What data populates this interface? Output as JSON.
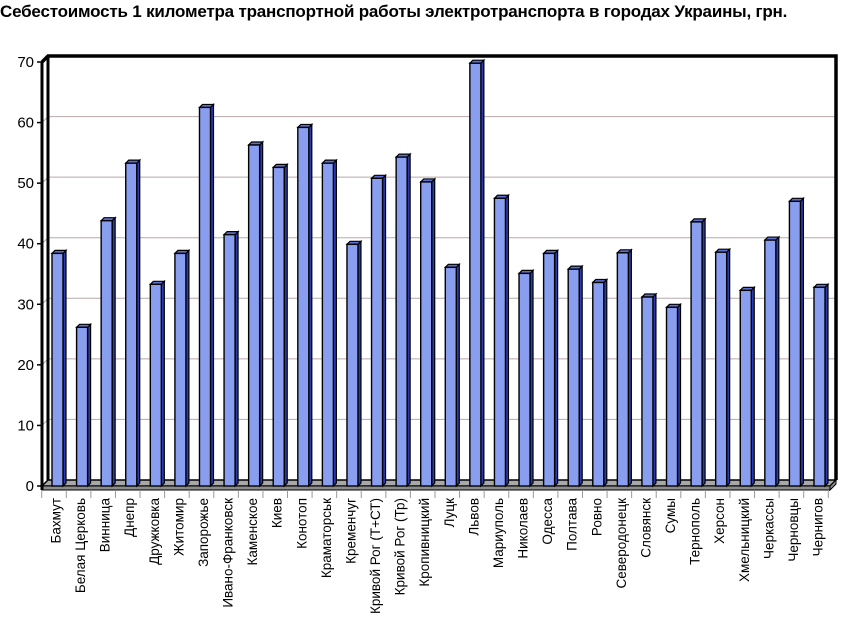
{
  "chart_data": {
    "type": "bar",
    "title": "Себестоимость 1 километра транспортной работы электротранспорта в городах Украины, грн.",
    "xlabel": "",
    "ylabel": "",
    "ylim": [
      0,
      70
    ],
    "yticks": [
      0,
      10,
      20,
      30,
      40,
      50,
      60,
      70
    ],
    "grid": true,
    "legend": null,
    "style": "3d-column",
    "bar_color": "#8a9ef0",
    "bar_side_color": "#2c3bb0",
    "categories": [
      "Бахмут",
      "Белая Церковь",
      "Винница",
      "Днепр",
      "Дружковка",
      "Житомир",
      "Запорожье",
      "Ивано-Франковск",
      "Каменское",
      "Киев",
      "Конотоп",
      "Краматорськ",
      "Кременчуг",
      "Кривой Рог (Т+СТ)",
      "Кривой Рог (Тр)",
      "Кропивницкий",
      "Луцк",
      "Львов",
      "Мариуполь",
      "Николаев",
      "Одесса",
      "Полтава",
      "Ровно",
      "Северодонецк",
      "Словянск",
      "Сумы",
      "Тернополь",
      "Херсон",
      "Хмельницкий",
      "Черкассы",
      "Черновцы",
      "Чернигов"
    ],
    "values": [
      38.4,
      26.2,
      43.8,
      53.3,
      33.3,
      38.4,
      62.5,
      41.5,
      56.3,
      52.6,
      59.2,
      53.3,
      39.9,
      50.8,
      54.3,
      50.2,
      36.1,
      69.8,
      47.5,
      35.1,
      38.4,
      35.8,
      33.6,
      38.5,
      31.2,
      29.5,
      43.6,
      38.6,
      32.3,
      40.6,
      47.0,
      32.8
    ]
  }
}
